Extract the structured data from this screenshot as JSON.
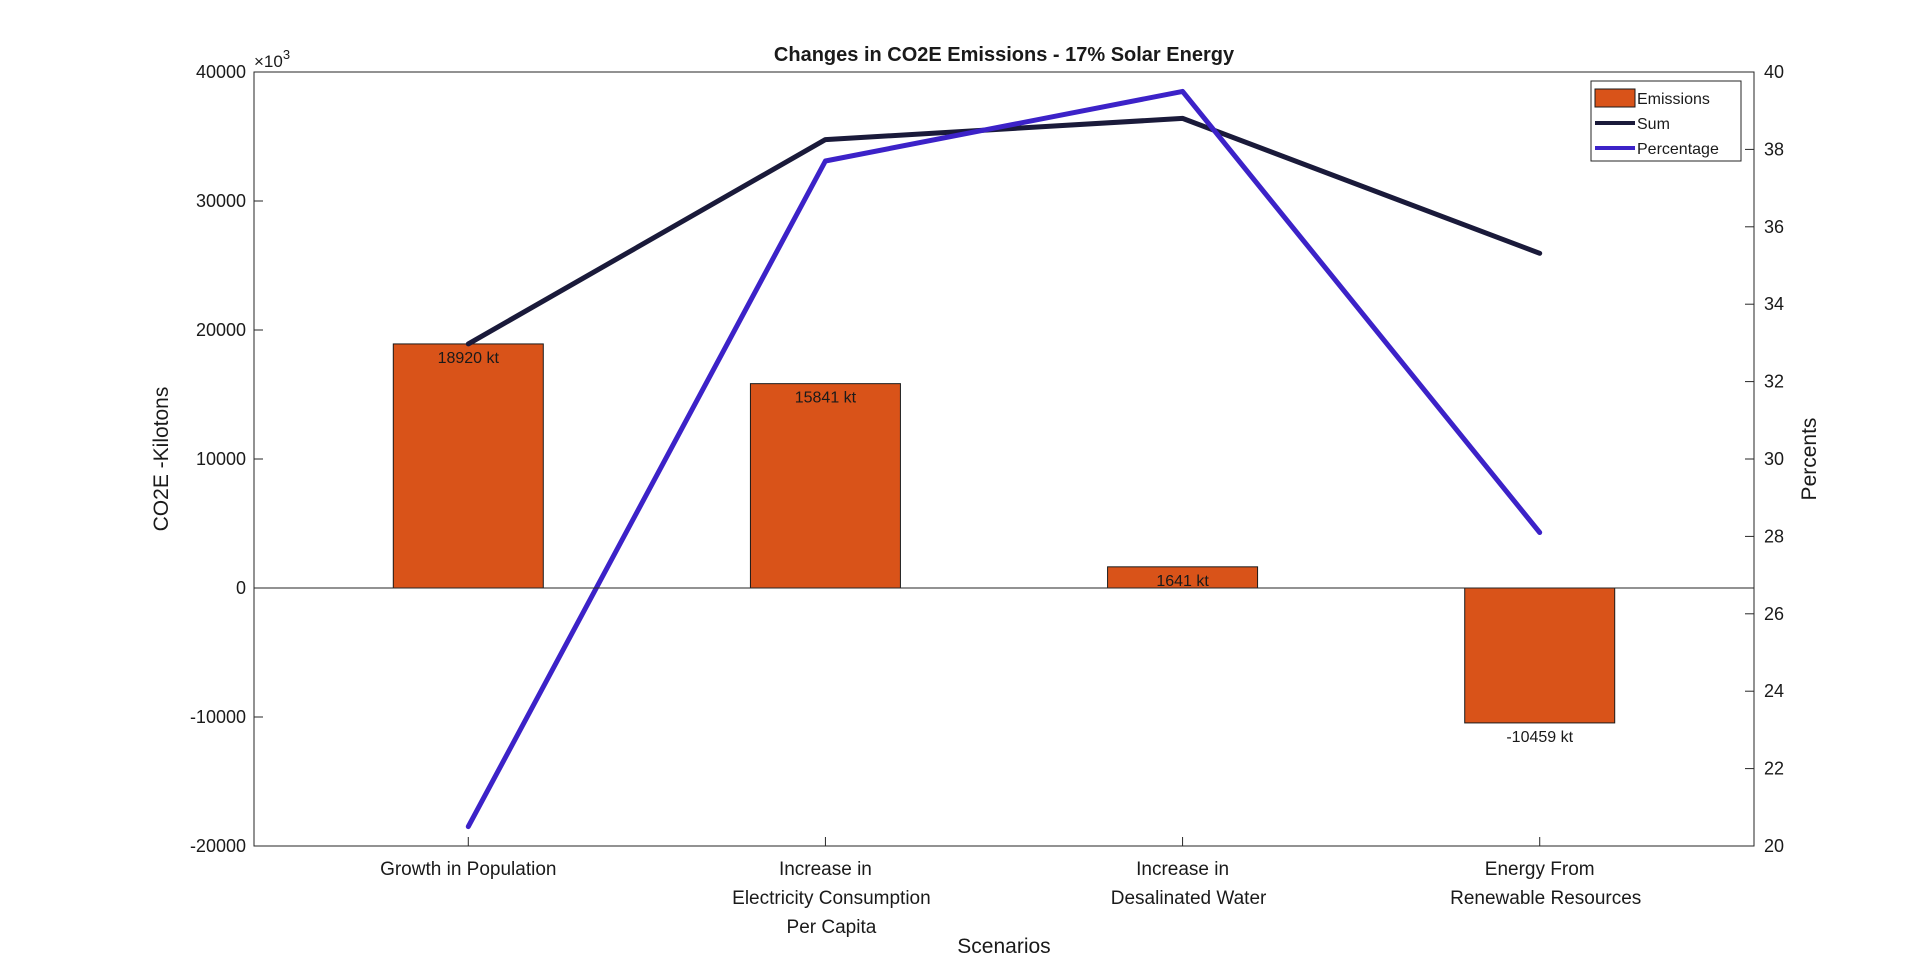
{
  "chart_data": {
    "type": "bar",
    "title": "Changes in CO2E Emissions - 17% Solar Energy",
    "xlabel": "Scenarios",
    "ylabel": "CO2E -Kilotons",
    "ylabel_right": "Percents",
    "exponent_base": "×10",
    "exponent_power": "3",
    "categories": [
      [
        "Growth in Population"
      ],
      [
        "Increase in",
        "Electricity Consumption",
        "Per Capita"
      ],
      [
        "Increase in",
        "Desalinated Water"
      ],
      [
        "Energy From",
        "Renewable Resources"
      ]
    ],
    "ylim": [
      -20000,
      40000
    ],
    "ylim_right": [
      20,
      40
    ],
    "yticks": [
      -20000,
      -10000,
      0,
      10000,
      20000,
      30000,
      40000
    ],
    "yticks_right": [
      20,
      22,
      24,
      26,
      28,
      30,
      32,
      34,
      36,
      38,
      40
    ],
    "series": [
      {
        "name": "Emissions",
        "kind": "bar",
        "axis": "left",
        "values": [
          18920,
          15841,
          1641,
          -10459
        ],
        "labels": [
          "18920 kt",
          "15841 kt",
          "1641 kt",
          "-10459 kt"
        ],
        "color": "#d95319"
      },
      {
        "name": "Sum",
        "kind": "line",
        "axis": "left",
        "values": [
          18920,
          34761,
          36402,
          25943
        ],
        "color": "#1a1a3a"
      },
      {
        "name": "Percentage",
        "kind": "line",
        "axis": "right",
        "values": [
          20.5,
          37.7,
          39.5,
          28.1
        ],
        "color": "#3c22c8"
      }
    ],
    "legend_position": "top-right",
    "grid": false
  }
}
